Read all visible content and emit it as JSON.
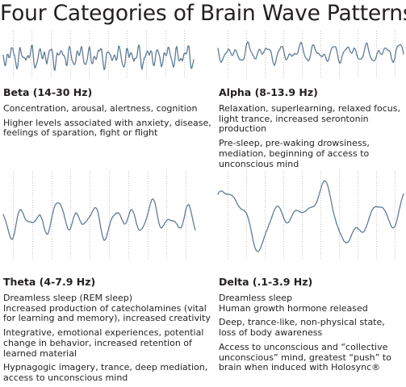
{
  "title": "Four Categories of Brain Wave Patterns",
  "colors": {
    "trace": "#5b7793",
    "tick": "#c4c4c4",
    "text": "#231f20"
  },
  "panels": [
    {
      "id": "beta",
      "heading": "Beta (14-30 Hz)",
      "paragraphs": [
        "Concentration, arousal, alertness, cognition",
        "Higher levels associated with anxiety, disease, feelings of sparation, fight or flight"
      ]
    },
    {
      "id": "alpha",
      "heading": "Alpha (8-13.9 Hz)",
      "paragraphs": [
        "Relaxation, superlearning, relaxed focus, light trance, increased serontonin production",
        "Pre-sleep,  pre-waking drowsiness, mediation, beginning of access to unconscious mind"
      ]
    },
    {
      "id": "theta",
      "heading": "Theta (4-7.9 Hz)",
      "paragraphs": [
        "Dreamless sleep (REM sleep)",
        "Increased production of catecholamines (vital for learning and memory), increased creativity",
        "Integrative, emotional experiences, potential change in behavior, increased retention of learned material",
        "Hypnagogic imagery, trance, deep mediation, access to unconscious mind"
      ]
    },
    {
      "id": "delta",
      "heading": "Delta (.1-3.9 Hz)",
      "paragraphs": [
        "Dreamless sleep",
        "Human growth hormone released",
        "Deep, trance-like, non-physical state, loss of body awareness",
        "Access to unconscious and “collective unconscious” mind, greatest “push” to brain when induced with Holosync®"
      ]
    }
  ]
}
